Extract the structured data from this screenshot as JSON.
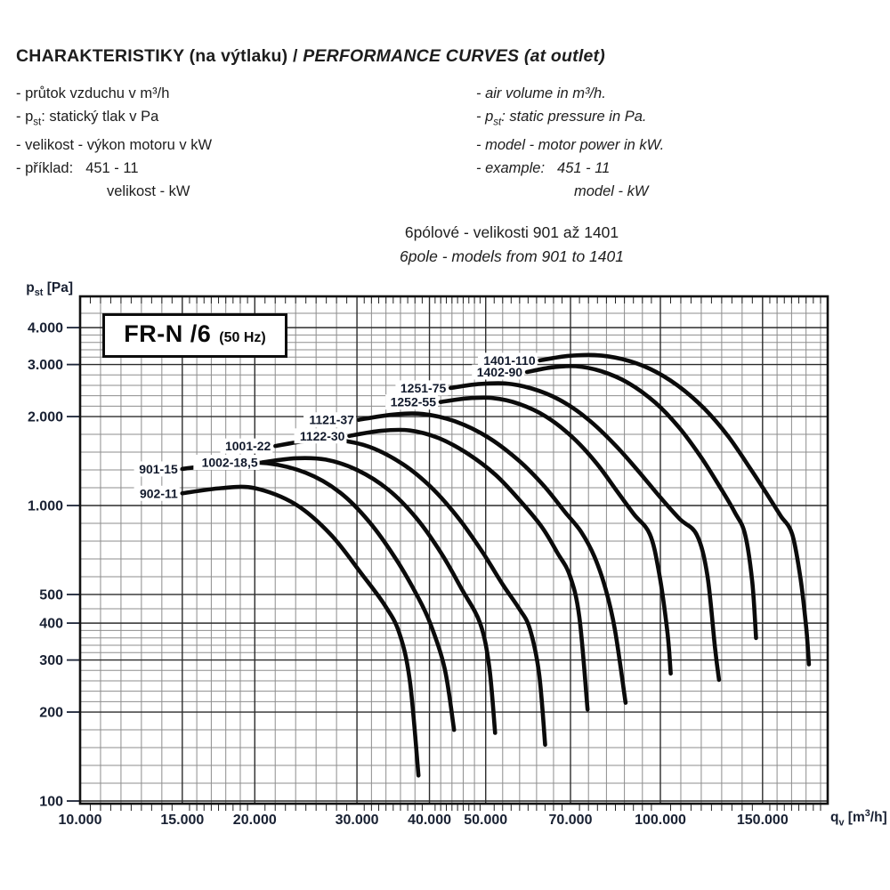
{
  "header": {
    "title_cz": "CHARAKTERISTIKY (na výtlaku) / ",
    "title_en": "PERFORMANCE CURVES (at outlet)"
  },
  "legend_cz": {
    "line1": "- průtok vzduchu v m³/h",
    "line2_html": "- p<sub>st</sub>: statický tlak v Pa",
    "line3": "- velikost - výkon motoru v kW",
    "line4_label": "- příklad:",
    "line4_value": "451 - 11",
    "line5": "velikost - kW"
  },
  "legend_en": {
    "line1": "- air volume in m³/h.",
    "line2_html": "- p<sub>st</sub>: static pressure in Pa.",
    "line3": "- model - motor power in kW.",
    "line4_label": "- example:",
    "line4_value": "451 - 11",
    "line5": "model - kW"
  },
  "subtitle": {
    "cz": "6pólové - velikosti 901 až 1401",
    "en": "6pole - models from 901 to 1401"
  },
  "chart_data": {
    "type": "line",
    "title": "FR-N /6 (50 Hz)",
    "box_label": "FR-N /6",
    "box_sublabel": "(50 Hz)",
    "ylabel_html": "p<sub>st</sub> [Pa]",
    "xlabel_html": "q<sub>v</sub> [m<sup>3</sup>/h]",
    "grid": true,
    "legend_position": "inline-labels",
    "x_axis": {
      "scale": "log",
      "range": [
        10000,
        194000
      ],
      "grid_edge": 200000,
      "ticks": [
        {
          "value": 10000,
          "label": "10.000"
        },
        {
          "value": 15000,
          "label": "15.000"
        },
        {
          "value": 20000,
          "label": "20.000"
        },
        {
          "value": 30000,
          "label": "30.000"
        },
        {
          "value": 40000,
          "label": "40.000"
        },
        {
          "value": 50000,
          "label": "50.000"
        },
        {
          "value": 70000,
          "label": "70.000"
        },
        {
          "value": 100000,
          "label": "100.000"
        },
        {
          "value": 150000,
          "label": "150.000"
        }
      ]
    },
    "y_axis": {
      "scale": "log",
      "range": [
        100,
        5100
      ],
      "grid_edge": 5000,
      "ticks": [
        {
          "value": 4000,
          "label": "4.000"
        },
        {
          "value": 3000,
          "label": "3.000"
        },
        {
          "value": 2000,
          "label": "2.000"
        },
        {
          "value": 1000,
          "label": "1.000"
        },
        {
          "value": 500,
          "label": "500"
        },
        {
          "value": 400,
          "label": "400"
        },
        {
          "value": 300,
          "label": "300"
        },
        {
          "value": 200,
          "label": "200"
        },
        {
          "value": 100,
          "label": "100"
        }
      ]
    },
    "series": [
      {
        "name": "902-11",
        "points": [
          [
            15000,
            1100
          ],
          [
            17500,
            1145
          ],
          [
            20000,
            1145
          ],
          [
            23500,
            1010
          ],
          [
            27000,
            800
          ],
          [
            30500,
            590
          ],
          [
            33500,
            460
          ],
          [
            35500,
            370
          ],
          [
            37000,
            255
          ],
          [
            38300,
            122
          ]
        ]
      },
      {
        "name": "901-15",
        "points": [
          [
            15000,
            1330
          ],
          [
            18000,
            1385
          ],
          [
            21000,
            1390
          ],
          [
            24500,
            1290
          ],
          [
            28000,
            1110
          ],
          [
            31500,
            880
          ],
          [
            35000,
            660
          ],
          [
            38000,
            500
          ],
          [
            40100,
            400
          ],
          [
            42500,
            280
          ],
          [
            44100,
            174
          ]
        ]
      },
      {
        "name": "1002-18,5",
        "points": [
          [
            20600,
            1400
          ],
          [
            23500,
            1445
          ],
          [
            26500,
            1430
          ],
          [
            30000,
            1320
          ],
          [
            34000,
            1130
          ],
          [
            38000,
            905
          ],
          [
            42000,
            685
          ],
          [
            45500,
            520
          ],
          [
            48900,
            400
          ],
          [
            50700,
            285
          ],
          [
            51900,
            170
          ]
        ]
      },
      {
        "name": "1001-22",
        "points": [
          [
            21700,
            1590
          ],
          [
            24500,
            1655
          ],
          [
            27500,
            1670
          ],
          [
            31500,
            1580
          ],
          [
            36000,
            1380
          ],
          [
            40500,
            1140
          ],
          [
            45000,
            900
          ],
          [
            49500,
            690
          ],
          [
            53500,
            540
          ],
          [
            57000,
            450
          ],
          [
            59500,
            385
          ],
          [
            61800,
            270
          ],
          [
            63300,
            155
          ]
        ]
      },
      {
        "name": "1122-30",
        "points": [
          [
            29100,
            1720
          ],
          [
            33000,
            1790
          ],
          [
            37000,
            1795
          ],
          [
            41500,
            1690
          ],
          [
            46500,
            1500
          ],
          [
            52000,
            1270
          ],
          [
            57500,
            1030
          ],
          [
            62500,
            845
          ],
          [
            66500,
            690
          ],
          [
            69800,
            580
          ],
          [
            72500,
            420
          ],
          [
            74900,
            204
          ]
        ]
      },
      {
        "name": "1121-37",
        "points": [
          [
            30200,
            1950
          ],
          [
            34500,
            2030
          ],
          [
            39000,
            2040
          ],
          [
            44500,
            1920
          ],
          [
            50500,
            1700
          ],
          [
            57000,
            1420
          ],
          [
            63000,
            1165
          ],
          [
            68500,
            950
          ],
          [
            73000,
            815
          ],
          [
            77000,
            670
          ],
          [
            80500,
            520
          ],
          [
            83500,
            380
          ],
          [
            87100,
            215
          ]
        ]
      },
      {
        "name": "1252-55",
        "points": [
          [
            41800,
            2240
          ],
          [
            46500,
            2305
          ],
          [
            51500,
            2310
          ],
          [
            57000,
            2210
          ],
          [
            63500,
            2000
          ],
          [
            70500,
            1705
          ],
          [
            77500,
            1395
          ],
          [
            84000,
            1125
          ],
          [
            90000,
            935
          ],
          [
            95900,
            800
          ],
          [
            99500,
            590
          ],
          [
            102800,
            375
          ],
          [
            104200,
            270
          ]
        ]
      },
      {
        "name": "1251-75",
        "points": [
          [
            43500,
            2500
          ],
          [
            48500,
            2575
          ],
          [
            54000,
            2590
          ],
          [
            60000,
            2490
          ],
          [
            67000,
            2280
          ],
          [
            75000,
            1960
          ],
          [
            83500,
            1605
          ],
          [
            92000,
            1295
          ],
          [
            100000,
            1065
          ],
          [
            108000,
            900
          ],
          [
            115600,
            795
          ],
          [
            120500,
            580
          ],
          [
            124200,
            330
          ],
          [
            126200,
            257
          ]
        ]
      },
      {
        "name": "1402-90",
        "points": [
          [
            58900,
            2830
          ],
          [
            65000,
            2935
          ],
          [
            71500,
            2960
          ],
          [
            79000,
            2850
          ],
          [
            88000,
            2600
          ],
          [
            98000,
            2230
          ],
          [
            108000,
            1825
          ],
          [
            118000,
            1440
          ],
          [
            127000,
            1145
          ],
          [
            134500,
            945
          ],
          [
            139900,
            800
          ],
          [
            144000,
            550
          ],
          [
            146200,
            356
          ]
        ]
      },
      {
        "name": "1401-110",
        "points": [
          [
            62000,
            3100
          ],
          [
            69000,
            3205
          ],
          [
            77000,
            3230
          ],
          [
            86000,
            3130
          ],
          [
            96000,
            2900
          ],
          [
            107000,
            2550
          ],
          [
            119000,
            2130
          ],
          [
            131000,
            1710
          ],
          [
            143000,
            1330
          ],
          [
            153000,
            1085
          ],
          [
            161000,
            925
          ],
          [
            168700,
            800
          ],
          [
            174500,
            560
          ],
          [
            178500,
            380
          ],
          [
            180300,
            290
          ]
        ]
      }
    ]
  }
}
